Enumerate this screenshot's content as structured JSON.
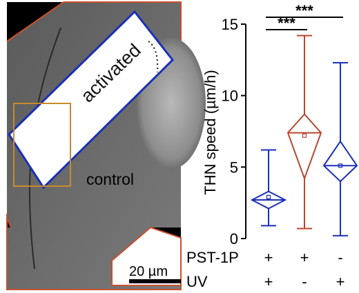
{
  "micrograph": {
    "activated_label": "activated",
    "control_label": "control",
    "scale_bar_label": "20 µm",
    "outline_color": "#c8502f",
    "activated_box_color": "#1a2fb8",
    "roi_box_color": "#c98a2c"
  },
  "chart_data": {
    "type": "box",
    "ylabel": "THN speed (µm/h)",
    "ylim": [
      0,
      15
    ],
    "yticks": [
      0,
      5,
      10,
      15
    ],
    "groups": [
      {
        "color": "#1a2fb8",
        "whisker_low": 0.9,
        "q1": 2.1,
        "median": 2.7,
        "q3": 3.3,
        "whisker_high": 6.2,
        "mean": 2.9
      },
      {
        "color": "#b8462e",
        "whisker_low": 0.7,
        "q1": 4.2,
        "median": 7.4,
        "q3": 8.7,
        "whisker_high": 14.2,
        "mean": 7.2
      },
      {
        "color": "#1a2fb8",
        "whisker_low": 0.2,
        "q1": 4.0,
        "median": 5.1,
        "q3": 6.8,
        "whisker_high": 12.3,
        "mean": 5.1
      }
    ],
    "condition_rows": [
      {
        "label": "PST-1P",
        "values": [
          "+",
          "+",
          "-"
        ]
      },
      {
        "label": "UV",
        "values": [
          "+",
          "-",
          "+"
        ]
      }
    ],
    "significance": [
      {
        "from": 1,
        "to": 2,
        "label": "***"
      },
      {
        "from": 1,
        "to": 3,
        "label": "***"
      }
    ]
  }
}
